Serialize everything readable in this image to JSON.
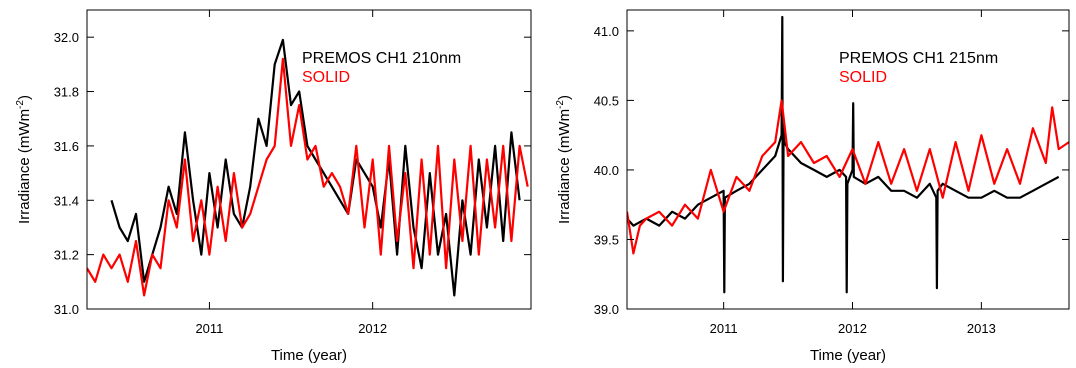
{
  "chart_data": [
    {
      "type": "line",
      "xlabel": "Time (year)",
      "ylabel": "Irradiance (mWm",
      "ylabel_sup": "-2",
      "ylabel_close": ")",
      "xlim": [
        2010.25,
        2012.97
      ],
      "ylim": [
        31.0,
        32.1
      ],
      "xticks": [
        2011,
        2012
      ],
      "xtick_labels": [
        "2011",
        "2012"
      ],
      "yticks": [
        31.0,
        31.2,
        31.4,
        31.6,
        31.8,
        32.0
      ],
      "ytick_labels": [
        "31.0",
        "31.2",
        "31.4",
        "31.6",
        "31.8",
        "32.0"
      ],
      "legend_position": "top-center",
      "series": [
        {
          "name": "PREMOS CH1 210nm",
          "color": "#000000",
          "x": [
            2010.4,
            2010.45,
            2010.5,
            2010.55,
            2010.6,
            2010.65,
            2010.7,
            2010.75,
            2010.8,
            2010.85,
            2010.9,
            2010.95,
            2011.0,
            2011.05,
            2011.1,
            2011.15,
            2011.2,
            2011.25,
            2011.3,
            2011.35,
            2011.4,
            2011.45,
            2011.5,
            2011.55,
            2011.6,
            2011.65,
            2011.7,
            2011.75,
            2011.8,
            2011.85,
            2011.9,
            2011.95,
            2012.0,
            2012.05,
            2012.1,
            2012.15,
            2012.2,
            2012.25,
            2012.3,
            2012.35,
            2012.4,
            2012.45,
            2012.5,
            2012.55,
            2012.6,
            2012.65,
            2012.7,
            2012.75,
            2012.8,
            2012.85,
            2012.9
          ],
          "y": [
            31.4,
            31.3,
            31.25,
            31.35,
            31.1,
            31.2,
            31.3,
            31.45,
            31.35,
            31.65,
            31.4,
            31.2,
            31.5,
            31.3,
            31.55,
            31.35,
            31.3,
            31.45,
            31.7,
            31.6,
            31.9,
            31.99,
            31.75,
            31.8,
            31.6,
            31.55,
            31.5,
            31.45,
            31.4,
            31.35,
            31.55,
            31.5,
            31.45,
            31.3,
            31.55,
            31.2,
            31.6,
            31.3,
            31.15,
            31.5,
            31.2,
            31.35,
            31.05,
            31.4,
            31.2,
            31.55,
            31.3,
            31.6,
            31.25,
            31.65,
            31.4
          ]
        },
        {
          "name": "SOLID",
          "color": "#ff0000",
          "x": [
            2010.25,
            2010.3,
            2010.35,
            2010.4,
            2010.45,
            2010.5,
            2010.55,
            2010.6,
            2010.65,
            2010.7,
            2010.75,
            2010.8,
            2010.85,
            2010.9,
            2010.95,
            2011.0,
            2011.05,
            2011.1,
            2011.15,
            2011.2,
            2011.25,
            2011.3,
            2011.35,
            2011.4,
            2011.45,
            2011.5,
            2011.55,
            2011.6,
            2011.65,
            2011.7,
            2011.75,
            2011.8,
            2011.85,
            2011.9,
            2011.95,
            2012.0,
            2012.05,
            2012.1,
            2012.15,
            2012.2,
            2012.25,
            2012.3,
            2012.35,
            2012.4,
            2012.45,
            2012.5,
            2012.55,
            2012.6,
            2012.65,
            2012.7,
            2012.75,
            2012.8,
            2012.85,
            2012.9,
            2012.95
          ],
          "y": [
            31.15,
            31.1,
            31.2,
            31.15,
            31.2,
            31.1,
            31.25,
            31.05,
            31.2,
            31.15,
            31.4,
            31.3,
            31.55,
            31.25,
            31.4,
            31.2,
            31.45,
            31.25,
            31.5,
            31.3,
            31.35,
            31.45,
            31.55,
            31.6,
            31.92,
            31.6,
            31.75,
            31.55,
            31.6,
            31.45,
            31.5,
            31.45,
            31.35,
            31.6,
            31.3,
            31.55,
            31.2,
            31.6,
            31.25,
            31.5,
            31.15,
            31.55,
            31.2,
            31.6,
            31.15,
            31.55,
            31.25,
            31.6,
            31.2,
            31.55,
            31.3,
            31.6,
            31.25,
            31.6,
            31.45
          ]
        }
      ]
    },
    {
      "type": "line",
      "xlabel": "Time (year)",
      "ylabel": "Irradiance (mWm",
      "ylabel_sup": "-2",
      "ylabel_close": ")",
      "xlim": [
        2010.25,
        2013.68
      ],
      "ylim": [
        39.0,
        41.15
      ],
      "xticks": [
        2011,
        2012,
        2013
      ],
      "xtick_labels": [
        "2011",
        "2012",
        "2013"
      ],
      "yticks": [
        39.0,
        39.5,
        40.0,
        40.5,
        41.0
      ],
      "ytick_labels": [
        "39.0",
        "39.5",
        "40.0",
        "40.5",
        "41.0"
      ],
      "legend_position": "top-center",
      "series": [
        {
          "name": "PREMOS CH1 215nm",
          "color": "#000000",
          "x": [
            2010.25,
            2010.3,
            2010.4,
            2010.5,
            2010.6,
            2010.7,
            2010.8,
            2010.9,
            2011.0,
            2011.005,
            2011.01,
            2011.1,
            2011.2,
            2011.3,
            2011.4,
            2011.45,
            2011.455,
            2011.46,
            2011.465,
            2011.47,
            2011.5,
            2011.6,
            2011.7,
            2011.8,
            2011.9,
            2011.95,
            2011.955,
            2011.96,
            2012.0,
            2012.005,
            2012.01,
            2012.1,
            2012.2,
            2012.3,
            2012.4,
            2012.5,
            2012.6,
            2012.65,
            2012.655,
            2012.66,
            2012.7,
            2012.8,
            2012.9,
            2013.0,
            2013.1,
            2013.2,
            2013.3,
            2013.4,
            2013.5,
            2013.6
          ],
          "y": [
            39.65,
            39.6,
            39.65,
            39.6,
            39.7,
            39.65,
            39.75,
            39.8,
            39.85,
            39.12,
            39.8,
            39.85,
            39.9,
            40.0,
            40.1,
            40.25,
            41.1,
            39.2,
            40.3,
            40.2,
            40.15,
            40.05,
            40.0,
            39.95,
            40.0,
            39.95,
            39.12,
            39.9,
            40.0,
            40.48,
            39.95,
            39.9,
            39.95,
            39.85,
            39.85,
            39.8,
            39.9,
            39.8,
            39.15,
            39.85,
            39.9,
            39.85,
            39.8,
            39.8,
            39.85,
            39.8,
            39.8,
            39.85,
            39.9,
            39.95
          ]
        },
        {
          "name": "SOLID",
          "color": "#ff0000",
          "x": [
            2010.25,
            2010.3,
            2010.35,
            2010.4,
            2010.5,
            2010.6,
            2010.7,
            2010.8,
            2010.9,
            2011.0,
            2011.1,
            2011.2,
            2011.3,
            2011.4,
            2011.45,
            2011.5,
            2011.6,
            2011.7,
            2011.8,
            2011.9,
            2012.0,
            2012.1,
            2012.2,
            2012.3,
            2012.4,
            2012.5,
            2012.6,
            2012.7,
            2012.8,
            2012.9,
            2013.0,
            2013.1,
            2013.2,
            2013.3,
            2013.4,
            2013.5,
            2013.55,
            2013.6,
            2013.68
          ],
          "y": [
            39.7,
            39.4,
            39.6,
            39.65,
            39.7,
            39.6,
            39.75,
            39.65,
            40.0,
            39.7,
            39.95,
            39.85,
            40.1,
            40.2,
            40.5,
            40.1,
            40.2,
            40.05,
            40.1,
            39.95,
            40.15,
            39.9,
            40.2,
            39.9,
            40.15,
            39.85,
            40.15,
            39.8,
            40.2,
            39.85,
            40.25,
            39.9,
            40.15,
            39.9,
            40.3,
            40.05,
            40.45,
            40.15,
            40.2
          ]
        }
      ]
    }
  ]
}
